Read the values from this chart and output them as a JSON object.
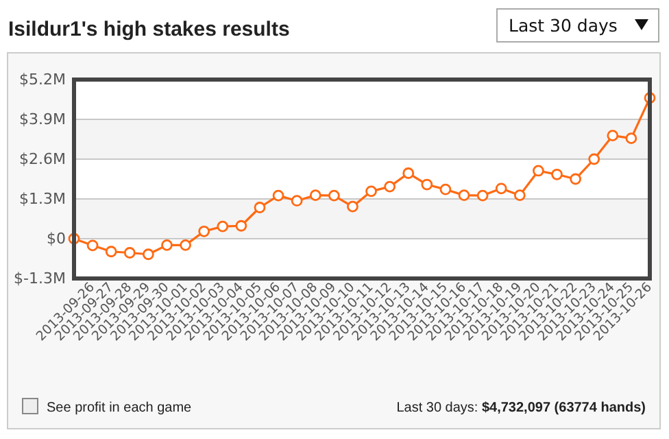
{
  "chart_data": {
    "type": "line",
    "title": "Isildur1's high stakes results",
    "x": [
      "2013-09-25",
      "2013-09-26",
      "2013-09-27",
      "2013-09-28",
      "2013-09-29",
      "2013-09-30",
      "2013-10-01",
      "2013-10-02",
      "2013-10-03",
      "2013-10-04",
      "2013-10-05",
      "2013-10-06",
      "2013-10-07",
      "2013-10-08",
      "2013-10-09",
      "2013-10-10",
      "2013-10-11",
      "2013-10-12",
      "2013-10-13",
      "2013-10-14",
      "2013-10-15",
      "2013-10-16",
      "2013-10-17",
      "2013-10-18",
      "2013-10-19",
      "2013-10-20",
      "2013-10-21",
      "2013-10-22",
      "2013-10-23",
      "2013-10-24",
      "2013-10-25",
      "2013-10-26"
    ],
    "series": [
      {
        "color": "#ff6a13",
        "values": [
          0,
          -0.22,
          -0.42,
          -0.46,
          -0.51,
          -0.21,
          -0.21,
          0.24,
          0.4,
          0.42,
          1.02,
          1.41,
          1.24,
          1.42,
          1.41,
          1.05,
          1.55,
          1.7,
          2.14,
          1.77,
          1.61,
          1.42,
          1.41,
          1.64,
          1.42,
          2.22,
          2.1,
          1.95,
          2.6,
          3.37,
          3.28,
          4.6
        ]
      }
    ],
    "xlim": [
      "2013-09-25",
      "2013-10-26"
    ],
    "xticks": [
      "2013-09-26",
      "2013-09-27",
      "2013-09-28",
      "2013-09-29",
      "2013-09-30",
      "2013-10-01",
      "2013-10-02",
      "2013-10-03",
      "2013-10-04",
      "2013-10-05",
      "2013-10-06",
      "2013-10-07",
      "2013-10-08",
      "2013-10-09",
      "2013-10-10",
      "2013-10-11",
      "2013-10-12",
      "2013-10-13",
      "2013-10-14",
      "2013-10-15",
      "2013-10-16",
      "2013-10-17",
      "2013-10-18",
      "2013-10-19",
      "2013-10-20",
      "2013-10-21",
      "2013-10-22",
      "2013-10-23",
      "2013-10-24",
      "2013-10-25",
      "2013-10-26"
    ],
    "ylim": [
      -1.3,
      5.2
    ],
    "yticks": [
      {
        "value": -1.3,
        "label": "$-1.3M"
      },
      {
        "value": 0,
        "label": "$0"
      },
      {
        "value": 1.3,
        "label": "$1.3M"
      },
      {
        "value": 2.6,
        "label": "$2.6M"
      },
      {
        "value": 3.9,
        "label": "$3.9M"
      },
      {
        "value": 5.2,
        "label": "$5.2M"
      }
    ],
    "bands": [
      {
        "axis": "y",
        "from": 0,
        "to": 1.3,
        "color": "#f4f4f4"
      },
      {
        "axis": "y",
        "from": 2.6,
        "to": 3.9,
        "color": "#f4f4f4"
      }
    ],
    "grid": "y",
    "marker": "circle",
    "line_style": "solid",
    "annotations": [
      "Last 30 days",
      "See profit in each game",
      "Last 30 days: $4,732,097 (63774 hands)"
    ]
  }
}
